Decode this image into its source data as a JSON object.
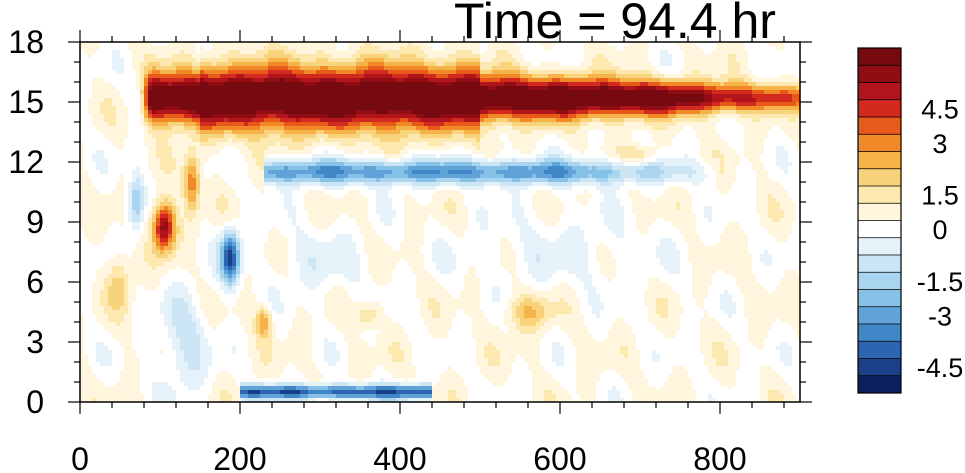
{
  "title": "Time = 94.4 hr",
  "chart_data": {
    "type": "heatmap",
    "title": "Time = 94.4 hr",
    "xlabel": "",
    "ylabel": "",
    "xlim": [
      0,
      900
    ],
    "ylim": [
      0,
      18
    ],
    "x_ticks": [
      0,
      200,
      400,
      600,
      800
    ],
    "y_ticks": [
      0,
      3,
      6,
      9,
      12,
      15,
      18
    ],
    "x_tick_labels": [
      "0",
      "200",
      "400",
      "600",
      "800"
    ],
    "y_tick_labels": [
      "0",
      "3",
      "6",
      "9",
      "12",
      "15",
      "18"
    ],
    "colorbar": {
      "levels": [
        -5.4,
        -4.8,
        -4.2,
        -3.6,
        -3.0,
        -2.4,
        -1.8,
        -1.2,
        -0.6,
        0,
        0.6,
        1.2,
        1.8,
        2.4,
        3.0,
        3.6,
        4.2,
        4.8,
        5.4
      ],
      "colors": [
        "#0d1f5e",
        "#1c3f8a",
        "#2d65b3",
        "#3f87c7",
        "#5fa3d8",
        "#86c1e8",
        "#aad5f0",
        "#cbe5f5",
        "#e5f2fa",
        "#ffffff",
        "#fff6dd",
        "#fde9b0",
        "#f9d27c",
        "#f6b34a",
        "#f18a26",
        "#e85a1a",
        "#d22a1f",
        "#b1141a",
        "#8f0d13",
        "#760a10"
      ],
      "tick_labels": [
        "4.5",
        "3",
        "1.5",
        "0",
        "-1.5",
        "-3",
        "-4.5"
      ],
      "tick_values": [
        4.5,
        3,
        1.5,
        0,
        -1.5,
        -3,
        -4.5
      ]
    },
    "features": [
      {
        "name": "upper positive jet",
        "x_range": [
          75,
          900
        ],
        "y_center": 15.2,
        "peak": 6.0
      },
      {
        "name": "negative band below jet",
        "x_range": [
          230,
          800
        ],
        "y_center": 11.5,
        "peak": -3.5
      },
      {
        "name": "negative surface band",
        "x_range": [
          200,
          430
        ],
        "y_center": 0.5,
        "peak": -4.5
      },
      {
        "name": "positive mid-level cell",
        "x_range": [
          85,
          125
        ],
        "y_center": 8.8,
        "peak": 5.5
      },
      {
        "name": "negative mid-level cell",
        "x_range": [
          165,
          210
        ],
        "y_center": 7.2,
        "peak": -5.0
      },
      {
        "name": "weak positive patch",
        "x_range": [
          510,
          620
        ],
        "y_center": 4.5,
        "peak": 1.8
      }
    ]
  }
}
